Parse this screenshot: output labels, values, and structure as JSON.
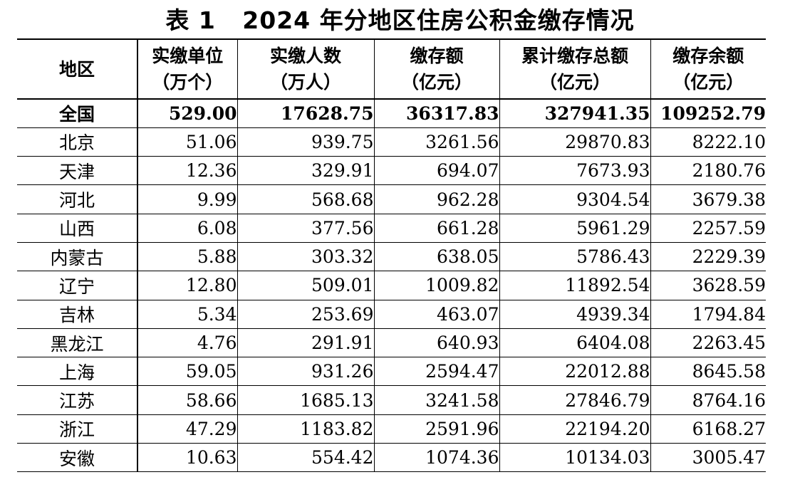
{
  "title": "表 1   2024 年分地区住房公积金缴存情况",
  "headers": [
    {
      "line1": "地区",
      "line2": ""
    },
    {
      "line1": "实缴单位",
      "line2": "（万个）"
    },
    {
      "line1": "实缴人数",
      "line2": "（万人）"
    },
    {
      "line1": "缴存额",
      "line2": "（亿元）"
    },
    {
      "line1": "累计缴存总额",
      "line2": "（亿元）"
    },
    {
      "line1": "缴存余额",
      "line2": "（亿元）"
    }
  ],
  "rows": [
    [
      "全国",
      "529.00",
      "17628.75",
      "36317.83",
      "327941.35",
      "109252.79"
    ],
    [
      "北京",
      "51.06",
      "939.75",
      "3261.56",
      "29870.83",
      "8222.10"
    ],
    [
      "天津",
      "12.36",
      "329.91",
      "694.07",
      "7673.93",
      "2180.76"
    ],
    [
      "河北",
      "9.99",
      "568.68",
      "962.28",
      "9304.54",
      "3679.38"
    ],
    [
      "山西",
      "6.08",
      "377.56",
      "661.28",
      "5961.29",
      "2257.59"
    ],
    [
      "内蒙古",
      "5.88",
      "303.32",
      "638.05",
      "5786.43",
      "2229.39"
    ],
    [
      "辽宁",
      "12.80",
      "509.01",
      "1009.82",
      "11892.54",
      "3628.59"
    ],
    [
      "吉林",
      "5.34",
      "253.69",
      "463.07",
      "4939.34",
      "1794.84"
    ],
    [
      "黑龙江",
      "4.76",
      "291.91",
      "640.93",
      "6404.08",
      "2263.45"
    ],
    [
      "上海",
      "59.05",
      "931.26",
      "2594.47",
      "22012.88",
      "8645.58"
    ],
    [
      "江苏",
      "58.66",
      "1685.13",
      "3241.58",
      "27846.79",
      "8764.16"
    ],
    [
      "浙江",
      "47.29",
      "1183.82",
      "2591.96",
      "22194.20",
      "6168.27"
    ],
    [
      "安徽",
      "10.63",
      "554.42",
      "1074.36",
      "10134.03",
      "3005.47"
    ]
  ]
}
